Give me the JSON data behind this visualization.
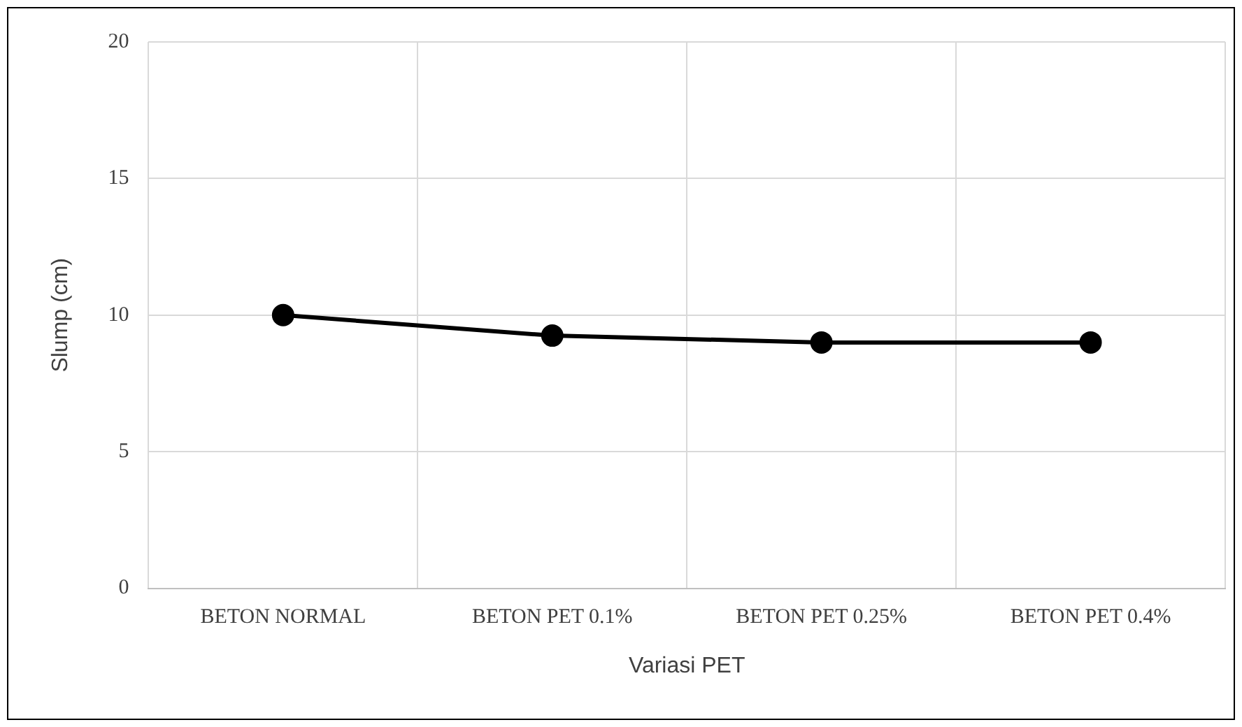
{
  "chart_data": {
    "type": "line",
    "xlabel": "Variasi PET",
    "ylabel": "Slump (cm)",
    "categories": [
      "BETON NORMAL",
      "BETON PET 0.1%",
      "BETON PET 0.25%",
      "BETON PET 0.4%"
    ],
    "series": [
      {
        "color": "#000000",
        "values": [
          10,
          9.25,
          9,
          9
        ]
      }
    ],
    "ylim": [
      0,
      20
    ],
    "yticks": [
      0,
      5,
      10,
      15,
      20
    ],
    "grid": true,
    "legend": false,
    "marker": "circle",
    "line_style": "solid"
  }
}
